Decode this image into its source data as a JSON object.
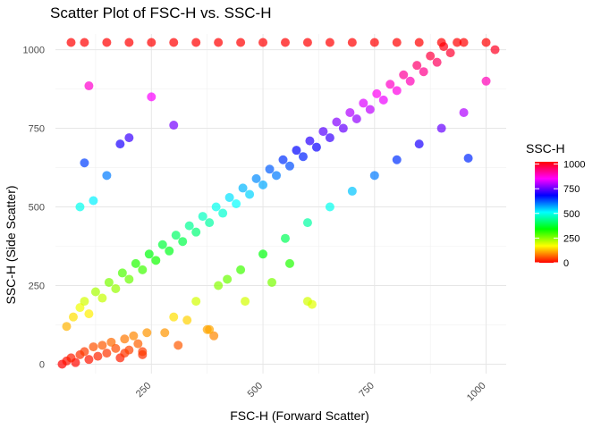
{
  "chart_data": {
    "type": "scatter",
    "title": "Scatter Plot of FSC-H vs. SSC-H",
    "xlabel": "FSC-H (Forward Scatter)",
    "ylabel": "SSC-H (Side Scatter)",
    "xlim": [
      35,
      1045
    ],
    "ylim": [
      -30,
      1050
    ],
    "x_ticks": [
      250,
      500,
      750,
      1000
    ],
    "y_ticks": [
      0,
      250,
      500,
      750,
      1000
    ],
    "grid": true,
    "color_by": "SSC-H",
    "legend": {
      "title": "SSC-H",
      "placement": "right",
      "ticks": [
        0,
        250,
        500,
        750,
        1000
      ],
      "range": [
        0,
        1023
      ],
      "colors": [
        "#ff0000",
        "#ffff00",
        "#00ff00",
        "#00ffff",
        "#0000ff",
        "#ff00ff",
        "#ff0000"
      ]
    },
    "series": [
      {
        "description_values": "approximate sample of points read from the figure",
        "points": [
          [
            50,
            0
          ],
          [
            60,
            10
          ],
          [
            70,
            20
          ],
          [
            80,
            5
          ],
          [
            90,
            30
          ],
          [
            100,
            40
          ],
          [
            110,
            15
          ],
          [
            120,
            55
          ],
          [
            130,
            25
          ],
          [
            140,
            60
          ],
          [
            150,
            35
          ],
          [
            160,
            70
          ],
          [
            170,
            50
          ],
          [
            180,
            20
          ],
          [
            190,
            80
          ],
          [
            200,
            45
          ],
          [
            210,
            90
          ],
          [
            220,
            65
          ],
          [
            230,
            30
          ],
          [
            240,
            100
          ],
          [
            60,
            120
          ],
          [
            75,
            150
          ],
          [
            90,
            180
          ],
          [
            100,
            200
          ],
          [
            110,
            160
          ],
          [
            125,
            230
          ],
          [
            140,
            210
          ],
          [
            155,
            260
          ],
          [
            170,
            240
          ],
          [
            185,
            290
          ],
          [
            200,
            270
          ],
          [
            215,
            320
          ],
          [
            230,
            300
          ],
          [
            245,
            350
          ],
          [
            260,
            330
          ],
          [
            275,
            380
          ],
          [
            290,
            360
          ],
          [
            305,
            410
          ],
          [
            320,
            390
          ],
          [
            335,
            440
          ],
          [
            350,
            420
          ],
          [
            365,
            470
          ],
          [
            380,
            450
          ],
          [
            395,
            500
          ],
          [
            410,
            480
          ],
          [
            425,
            530
          ],
          [
            440,
            510
          ],
          [
            455,
            560
          ],
          [
            470,
            540
          ],
          [
            485,
            590
          ],
          [
            500,
            570
          ],
          [
            515,
            620
          ],
          [
            530,
            600
          ],
          [
            545,
            650
          ],
          [
            560,
            630
          ],
          [
            575,
            680
          ],
          [
            590,
            660
          ],
          [
            605,
            710
          ],
          [
            620,
            690
          ],
          [
            635,
            740
          ],
          [
            650,
            720
          ],
          [
            665,
            770
          ],
          [
            680,
            750
          ],
          [
            695,
            800
          ],
          [
            710,
            780
          ],
          [
            725,
            830
          ],
          [
            740,
            810
          ],
          [
            755,
            860
          ],
          [
            770,
            840
          ],
          [
            785,
            890
          ],
          [
            800,
            870
          ],
          [
            815,
            920
          ],
          [
            830,
            900
          ],
          [
            845,
            950
          ],
          [
            860,
            930
          ],
          [
            875,
            980
          ],
          [
            890,
            960
          ],
          [
            905,
            1010
          ],
          [
            920,
            990
          ],
          [
            935,
            1023
          ],
          [
            300,
            150
          ],
          [
            350,
            200
          ],
          [
            400,
            250
          ],
          [
            450,
            300
          ],
          [
            500,
            350
          ],
          [
            550,
            400
          ],
          [
            600,
            450
          ],
          [
            650,
            500
          ],
          [
            700,
            550
          ],
          [
            750,
            600
          ],
          [
            800,
            650
          ],
          [
            850,
            700
          ],
          [
            900,
            750
          ],
          [
            950,
            800
          ],
          [
            1000,
            900
          ],
          [
            1020,
            1000
          ],
          [
            280,
            100
          ],
          [
            330,
            140
          ],
          [
            380,
            110
          ],
          [
            600,
            200
          ],
          [
            90,
            500
          ],
          [
            120,
            520
          ],
          [
            150,
            600
          ],
          [
            180,
            700
          ],
          [
            200,
            720
          ],
          [
            100,
            640
          ],
          [
            110,
            885
          ],
          [
            250,
            850
          ],
          [
            300,
            760
          ],
          [
            960,
            655
          ],
          [
            70,
            1023
          ],
          [
            100,
            1023
          ],
          [
            150,
            1023
          ],
          [
            200,
            1023
          ],
          [
            250,
            1023
          ],
          [
            300,
            1023
          ],
          [
            350,
            1023
          ],
          [
            400,
            1023
          ],
          [
            450,
            1023
          ],
          [
            500,
            1023
          ],
          [
            550,
            1023
          ],
          [
            600,
            1023
          ],
          [
            650,
            1023
          ],
          [
            700,
            1023
          ],
          [
            750,
            1023
          ],
          [
            800,
            1023
          ],
          [
            850,
            1023
          ],
          [
            900,
            1023
          ],
          [
            950,
            1023
          ],
          [
            1000,
            1023
          ],
          [
            375,
            110
          ],
          [
            390,
            90
          ],
          [
            310,
            60
          ],
          [
            230,
            40
          ],
          [
            190,
            35
          ],
          [
            420,
            270
          ],
          [
            460,
            200
          ],
          [
            520,
            260
          ],
          [
            560,
            320
          ],
          [
            610,
            190
          ]
        ]
      }
    ]
  }
}
